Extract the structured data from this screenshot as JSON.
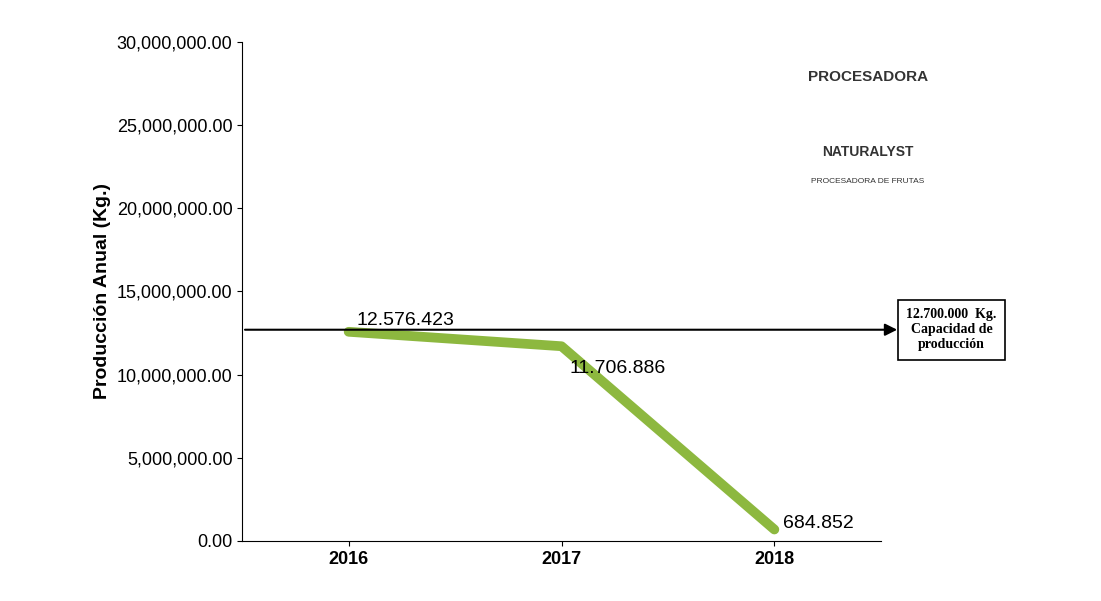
{
  "chart_data": {
    "type": "line",
    "y_label": "Producción Anual (Kg.)",
    "categories": [
      "2016",
      "2017",
      "2018"
    ],
    "values": [
      12576423,
      11706886,
      684852
    ],
    "value_labels": [
      "12.576.423",
      "11.706.886",
      "684.852"
    ],
    "data_labels": true,
    "color": "#8db83f",
    "ylim": [
      0,
      30000000
    ],
    "yticks": [
      {
        "value": 0,
        "label": "0.00"
      },
      {
        "value": 5000000,
        "label": "5,000,000.00"
      },
      {
        "value": 10000000,
        "label": "10,000,000.00"
      },
      {
        "value": 15000000,
        "label": "15,000,000.00"
      },
      {
        "value": 20000000,
        "label": "20,000,000.00"
      },
      {
        "value": 25000000,
        "label": "25,000,000.00"
      },
      {
        "value": 30000000,
        "label": "30,000,000.00"
      }
    ],
    "grid": false,
    "reference_line": {
      "value": 12700000,
      "text": "12.700.000  Kg.\nCapacidad de\nproducción"
    },
    "logo_texts": [
      "PROCESADORA",
      "NATURALYST",
      "PROCESADORA DE FRUTAS"
    ]
  }
}
